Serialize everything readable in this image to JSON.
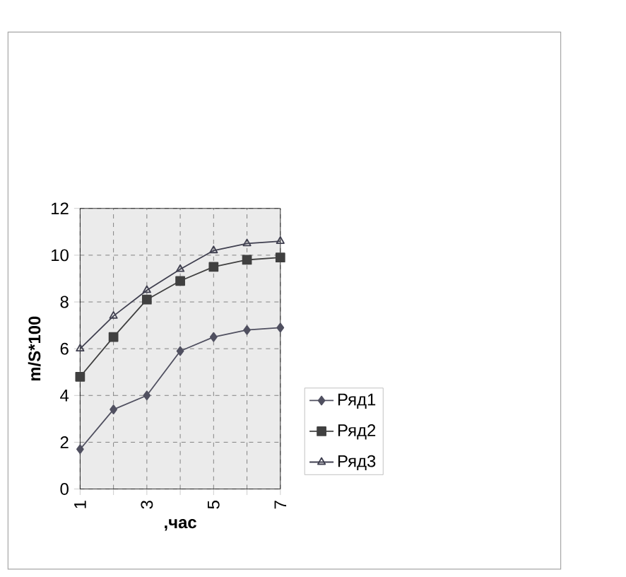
{
  "chart_data": {
    "type": "line",
    "xlabel": ",час",
    "ylabel": "m/S*100",
    "x": [
      1,
      2,
      3,
      4,
      5,
      6,
      7
    ],
    "xlim": [
      1,
      7
    ],
    "xticks": [
      1,
      {
        "value": 2,
        "label": null
      },
      3,
      {
        "value": 4,
        "label": null
      },
      5,
      {
        "value": 6,
        "label": null
      },
      7
    ],
    "ylim": [
      0,
      12
    ],
    "yticks": [
      0,
      2,
      4,
      6,
      8,
      10,
      12
    ],
    "grid": true,
    "legend": "right",
    "series": [
      {
        "name": "Ряд1",
        "color": "#505060",
        "marker": "diamond",
        "values": [
          1.7,
          3.4,
          4.0,
          5.9,
          6.5,
          6.8,
          6.9
        ]
      },
      {
        "name": "Ряд2",
        "color": "#404040",
        "marker": "square",
        "values": [
          4.8,
          6.5,
          8.1,
          8.9,
          9.5,
          9.8,
          9.9
        ]
      },
      {
        "name": "Ряд3",
        "color": "#404050",
        "marker": "triangle",
        "values": [
          6.0,
          7.4,
          8.5,
          9.4,
          10.2,
          10.5,
          10.6
        ]
      }
    ]
  }
}
